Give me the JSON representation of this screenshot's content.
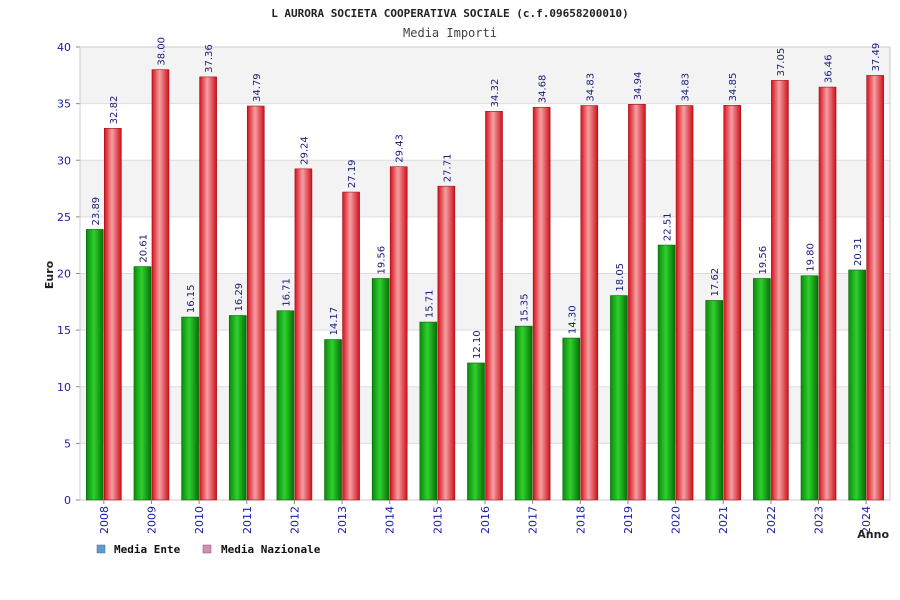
{
  "chart_data": {
    "type": "bar",
    "title": "L AURORA SOCIETA COOPERATIVA SOCIALE (c.f.09658200010)",
    "subtitle": "Media Importi",
    "xlabel": "Anno",
    "ylabel": "Euro",
    "ylim": [
      0,
      40
    ],
    "yticks": [
      0,
      5,
      10,
      15,
      20,
      25,
      30,
      35,
      40
    ],
    "categories": [
      "2008",
      "2009",
      "2010",
      "2011",
      "2012",
      "2013",
      "2014",
      "2015",
      "2016",
      "2017",
      "2018",
      "2019",
      "2020",
      "2021",
      "2022",
      "2023",
      "2024"
    ],
    "series": [
      {
        "name": "Media Ente",
        "color": "#0a9e0a",
        "legend_color": "#5b9bd5",
        "values": [
          23.89,
          20.61,
          16.15,
          16.29,
          16.71,
          14.17,
          19.56,
          15.71,
          12.1,
          15.35,
          14.3,
          18.05,
          22.51,
          17.62,
          19.56,
          19.8,
          20.31
        ],
        "labels": [
          "23.89",
          "20.61",
          "16.15",
          "16.29",
          "16.71",
          "14.17",
          "19.56",
          "15.71",
          "12.10",
          "15.35",
          "14.30",
          "18.05",
          "22.51",
          "17.62",
          "19.56",
          "19.80",
          "20.31"
        ]
      },
      {
        "name": "Media Nazionale",
        "color": "#e8202a",
        "legend_color": "#d98bb5",
        "values": [
          32.82,
          38.0,
          37.36,
          34.79,
          29.24,
          27.19,
          29.43,
          27.71,
          34.32,
          34.68,
          34.83,
          34.94,
          34.83,
          34.85,
          37.05,
          36.46,
          37.49
        ],
        "labels": [
          "32.82",
          "38.00",
          "37.36",
          "34.79",
          "29.24",
          "27.19",
          "29.43",
          "27.71",
          "34.32",
          "34.68",
          "34.83",
          "34.94",
          "34.83",
          "34.85",
          "37.05",
          "36.46",
          "37.49"
        ]
      }
    ],
    "grid": true,
    "legend_position": "bottom-left"
  }
}
